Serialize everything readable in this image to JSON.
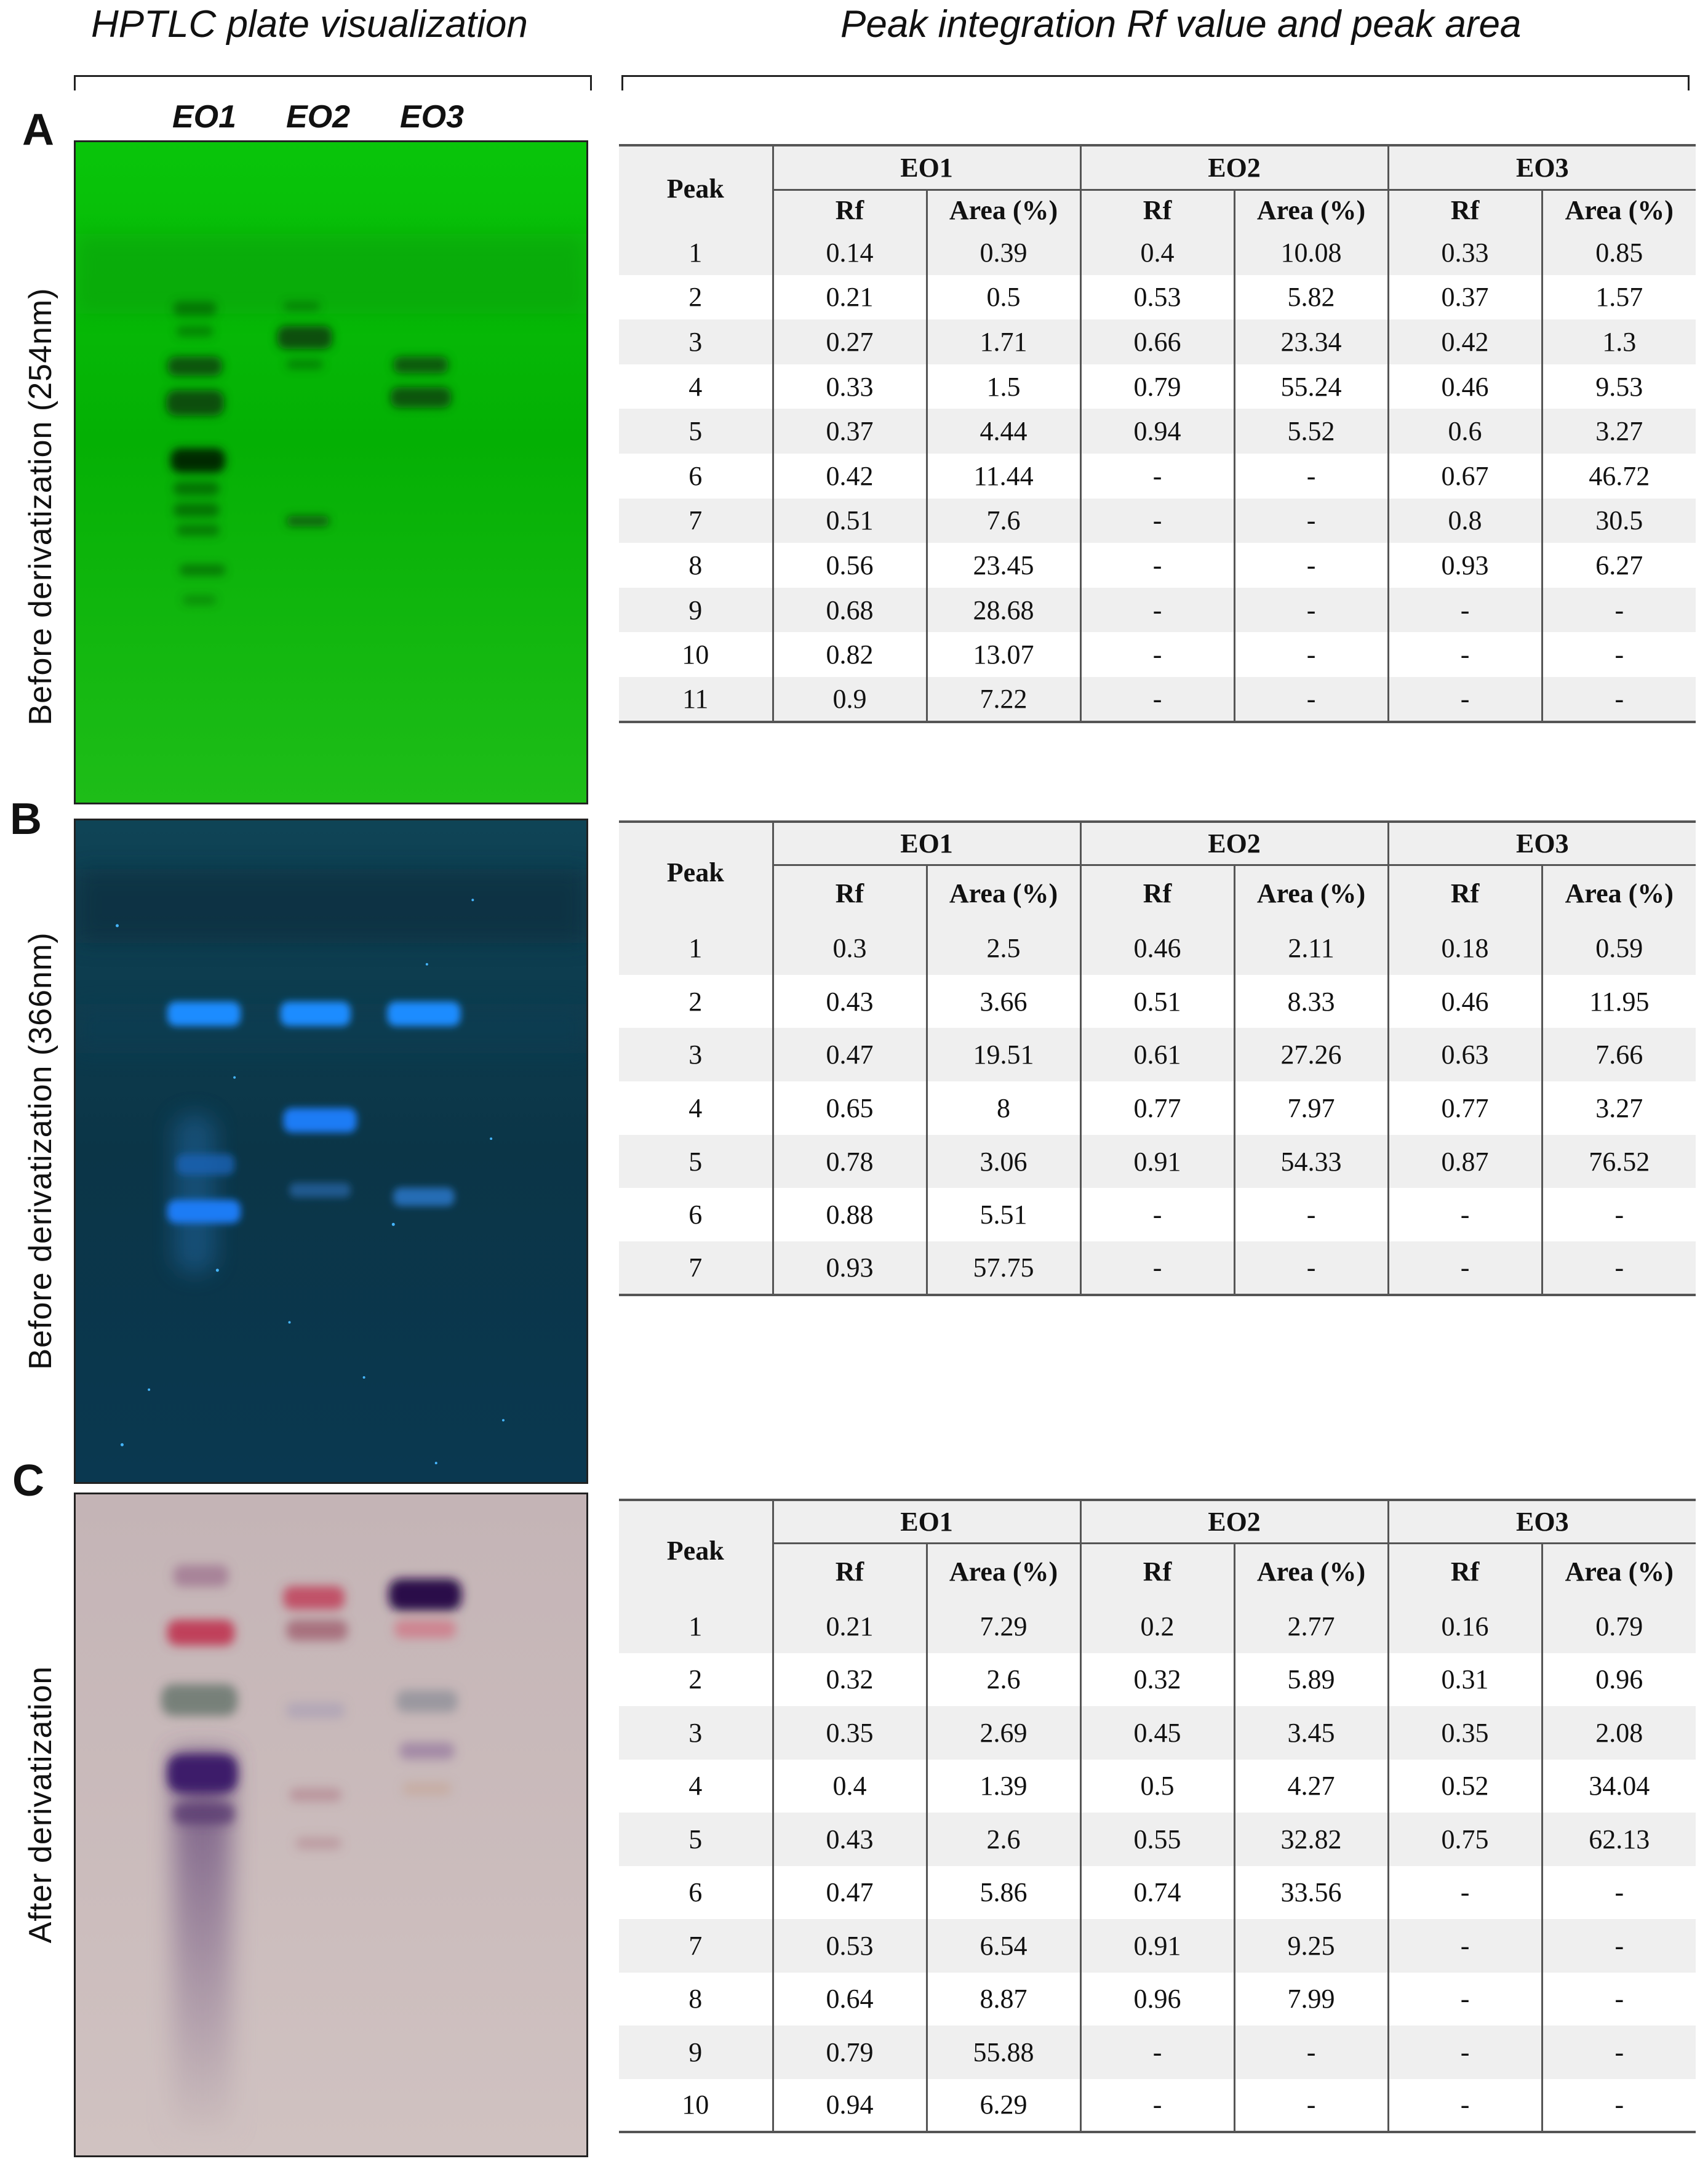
{
  "headers": {
    "left": "HPTLC plate visualization",
    "right": "Peak integration Rf value and peak area"
  },
  "lanes": [
    "EO1",
    "EO2",
    "EO3"
  ],
  "panels": [
    {
      "letter": "A",
      "side_label": "Before  derivatization  (254nm)",
      "plate_color": "#00c000",
      "table": {
        "peak_header": "Peak",
        "groups": [
          "EO1",
          "EO2",
          "EO3"
        ],
        "subheaders": [
          "Rf",
          "Area (%)",
          "Rf",
          "Area (%)",
          "Rf",
          "Area (%)"
        ],
        "rows": [
          [
            "1",
            "0.14",
            "0.39",
            "0.4",
            "10.08",
            "0.33",
            "0.85"
          ],
          [
            "2",
            "0.21",
            "0.5",
            "0.53",
            "5.82",
            "0.37",
            "1.57"
          ],
          [
            "3",
            "0.27",
            "1.71",
            "0.66",
            "23.34",
            "0.42",
            "1.3"
          ],
          [
            "4",
            "0.33",
            "1.5",
            "0.79",
            "55.24",
            "0.46",
            "9.53"
          ],
          [
            "5",
            "0.37",
            "4.44",
            "0.94",
            "5.52",
            "0.6",
            "3.27"
          ],
          [
            "6",
            "0.42",
            "11.44",
            "-",
            "-",
            "0.67",
            "46.72"
          ],
          [
            "7",
            "0.51",
            "7.6",
            "-",
            "-",
            "0.8",
            "30.5"
          ],
          [
            "8",
            "0.56",
            "23.45",
            "-",
            "-",
            "0.93",
            "6.27"
          ],
          [
            "9",
            "0.68",
            "28.68",
            "-",
            "-",
            "-",
            "-"
          ],
          [
            "10",
            "0.82",
            "13.07",
            "-",
            "-",
            "-",
            "-"
          ],
          [
            "11",
            "0.9",
            "7.22",
            "-",
            "-",
            "-",
            "-"
          ]
        ]
      }
    },
    {
      "letter": "B",
      "side_label": "Before  derivatization  (366nm)",
      "plate_color": "#0c3a4c",
      "table": {
        "peak_header": "Peak",
        "groups": [
          "EO1",
          "EO2",
          "EO3"
        ],
        "subheaders": [
          "Rf",
          "Area (%)",
          "Rf",
          "Area (%)",
          "Rf",
          "Area (%)"
        ],
        "rows": [
          [
            "1",
            "0.3",
            "2.5",
            "0.46",
            "2.11",
            "0.18",
            "0.59"
          ],
          [
            "2",
            "0.43",
            "3.66",
            "0.51",
            "8.33",
            "0.46",
            "11.95"
          ],
          [
            "3",
            "0.47",
            "19.51",
            "0.61",
            "27.26",
            "0.63",
            "7.66"
          ],
          [
            "4",
            "0.65",
            "8",
            "0.77",
            "7.97",
            "0.77",
            "3.27"
          ],
          [
            "5",
            "0.78",
            "3.06",
            "0.91",
            "54.33",
            "0.87",
            "76.52"
          ],
          [
            "6",
            "0.88",
            "5.51",
            "-",
            "-",
            "-",
            "-"
          ],
          [
            "7",
            "0.93",
            "57.75",
            "-",
            "-",
            "-",
            "-"
          ]
        ]
      }
    },
    {
      "letter": "C",
      "side_label": "After derivatization",
      "plate_color": "#cbbcbc",
      "table": {
        "peak_header": "Peak",
        "groups": [
          "EO1",
          "EO2",
          "EO3"
        ],
        "subheaders": [
          "Rf",
          "Area (%)",
          "Rf",
          "Area (%)",
          "Rf",
          "Area (%)"
        ],
        "rows": [
          [
            "1",
            "0.21",
            "7.29",
            "0.2",
            "2.77",
            "0.16",
            "0.79"
          ],
          [
            "2",
            "0.32",
            "2.6",
            "0.32",
            "5.89",
            "0.31",
            "0.96"
          ],
          [
            "3",
            "0.35",
            "2.69",
            "0.45",
            "3.45",
            "0.35",
            "2.08"
          ],
          [
            "4",
            "0.4",
            "1.39",
            "0.5",
            "4.27",
            "0.52",
            "34.04"
          ],
          [
            "5",
            "0.43",
            "2.6",
            "0.55",
            "32.82",
            "0.75",
            "62.13"
          ],
          [
            "6",
            "0.47",
            "5.86",
            "0.74",
            "33.56",
            "-",
            "-"
          ],
          [
            "7",
            "0.53",
            "6.54",
            "0.91",
            "9.25",
            "-",
            "-"
          ],
          [
            "8",
            "0.64",
            "8.87",
            "0.96",
            "7.99",
            "-",
            "-"
          ],
          [
            "9",
            "0.79",
            "55.88",
            "-",
            "-",
            "-",
            "-"
          ],
          [
            "10",
            "0.94",
            "6.29",
            "-",
            "-",
            "-",
            "-"
          ]
        ]
      }
    }
  ]
}
